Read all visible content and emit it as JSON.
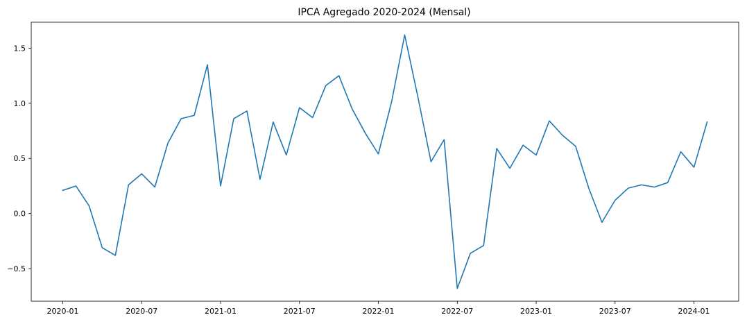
{
  "chart_data": {
    "type": "line",
    "title": "IPCA Agregado 2020-2024 (Mensal)",
    "xlabel": "",
    "ylabel": "",
    "x": [
      "2020-01",
      "2020-02",
      "2020-03",
      "2020-04",
      "2020-05",
      "2020-06",
      "2020-07",
      "2020-08",
      "2020-09",
      "2020-10",
      "2020-11",
      "2020-12",
      "2021-01",
      "2021-02",
      "2021-03",
      "2021-04",
      "2021-05",
      "2021-06",
      "2021-07",
      "2021-08",
      "2021-09",
      "2021-10",
      "2021-11",
      "2021-12",
      "2022-01",
      "2022-02",
      "2022-03",
      "2022-04",
      "2022-05",
      "2022-06",
      "2022-07",
      "2022-08",
      "2022-09",
      "2022-10",
      "2022-11",
      "2022-12",
      "2023-01",
      "2023-02",
      "2023-03",
      "2023-04",
      "2023-05",
      "2023-06",
      "2023-07",
      "2023-08",
      "2023-09",
      "2023-10",
      "2023-11",
      "2023-12",
      "2024-01",
      "2024-02"
    ],
    "series": [
      {
        "values": [
          0.21,
          0.25,
          0.07,
          -0.31,
          -0.38,
          0.26,
          0.36,
          0.24,
          0.64,
          0.86,
          0.89,
          1.35,
          0.25,
          0.86,
          0.93,
          0.31,
          0.83,
          0.53,
          0.96,
          0.87,
          1.16,
          1.25,
          0.95,
          0.73,
          0.54,
          1.01,
          1.62,
          1.06,
          0.47,
          0.67,
          -0.68,
          -0.36,
          -0.29,
          0.59,
          0.41,
          0.62,
          0.53,
          0.84,
          0.71,
          0.61,
          0.23,
          -0.08,
          0.12,
          0.23,
          0.26,
          0.24,
          0.28,
          0.56,
          0.42,
          0.83
        ],
        "color": "#1f77b4"
      }
    ],
    "x_ticks": [
      "2020-01",
      "2020-07",
      "2021-01",
      "2021-07",
      "2022-01",
      "2022-07",
      "2023-01",
      "2023-07",
      "2024-01"
    ],
    "y_ticks": [
      -0.5,
      0.0,
      0.5,
      1.0,
      1.5
    ],
    "y_tick_labels": [
      "−0.5",
      "0.0",
      "0.5",
      "1.0",
      "1.5"
    ],
    "ylim": [
      -0.795,
      1.735
    ],
    "grid": false,
    "legend": "none"
  }
}
